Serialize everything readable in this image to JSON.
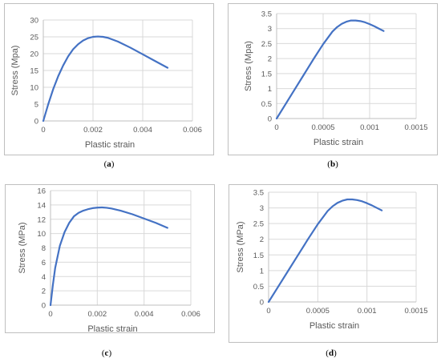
{
  "chart_data": [
    {
      "type": "line",
      "caption_open": "(",
      "caption_letter": "a",
      "caption_close": ")",
      "xlabel": "Plastic strain",
      "ylabel": "Stress (Mpa)",
      "xlim": [
        0,
        0.006
      ],
      "ylim": [
        0,
        30
      ],
      "xticks": [
        "0",
        "0.002",
        "0.004",
        "0.006"
      ],
      "xtick_values": [
        0,
        0.002,
        0.004,
        0.006
      ],
      "yticks": [
        "0",
        "5",
        "10",
        "15",
        "20",
        "25",
        "30"
      ],
      "ytick_values": [
        0,
        5,
        10,
        15,
        20,
        25,
        30
      ],
      "grid": true,
      "color": "#4472c4",
      "series": [
        {
          "x": [
            0,
            0.0002,
            0.0004,
            0.0006,
            0.0008,
            0.001,
            0.0012,
            0.0014,
            0.0016,
            0.0018,
            0.002,
            0.0022,
            0.0024,
            0.0026,
            0.003,
            0.0035,
            0.004,
            0.0045,
            0.005
          ],
          "y": [
            0,
            5.0,
            9.5,
            13.3,
            16.5,
            19.2,
            21.3,
            22.8,
            23.9,
            24.6,
            25.0,
            25.1,
            25.0,
            24.7,
            23.6,
            21.8,
            19.8,
            17.8,
            15.8
          ]
        }
      ]
    },
    {
      "type": "line",
      "caption_open": "(",
      "caption_letter": "b",
      "caption_close": ")",
      "xlabel": "Plastic strain",
      "ylabel": "Stress (Mpa)",
      "xlim": [
        0,
        0.0015
      ],
      "ylim": [
        0,
        3.5
      ],
      "xticks": [
        "0",
        "0.0005",
        "0.001",
        "0.0015"
      ],
      "xtick_values": [
        0,
        0.0005,
        0.001,
        0.0015
      ],
      "yticks": [
        "0",
        "0.5",
        "1",
        "1.5",
        "2",
        "2.5",
        "3",
        "3.5"
      ],
      "ytick_values": [
        0,
        0.5,
        1,
        1.5,
        2,
        2.5,
        3,
        3.5
      ],
      "grid": true,
      "color": "#4472c4",
      "series": [
        {
          "x": [
            0,
            0.0001,
            0.0002,
            0.0003,
            0.0004,
            0.0005,
            0.0006,
            0.00065,
            0.0007,
            0.00075,
            0.0008,
            0.00085,
            0.0009,
            0.00095,
            0.001,
            0.00105,
            0.0011,
            0.00115
          ],
          "y": [
            0,
            0.5,
            1.0,
            1.5,
            2.0,
            2.48,
            2.9,
            3.05,
            3.16,
            3.23,
            3.27,
            3.27,
            3.25,
            3.21,
            3.15,
            3.08,
            3.0,
            2.92
          ]
        }
      ]
    },
    {
      "type": "line",
      "caption_open": "(",
      "caption_letter": "c",
      "caption_close": ")",
      "xlabel": "Plastic strain",
      "ylabel": "Stress (MPa)",
      "xlim": [
        0,
        0.006
      ],
      "ylim": [
        0,
        16
      ],
      "xticks": [
        "0",
        "0.002",
        "0.004",
        "0.006"
      ],
      "xtick_values": [
        0,
        0.002,
        0.004,
        0.006
      ],
      "yticks": [
        "0",
        "2",
        "4",
        "6",
        "8",
        "10",
        "12",
        "14",
        "16"
      ],
      "ytick_values": [
        0,
        2,
        4,
        6,
        8,
        10,
        12,
        14,
        16
      ],
      "grid": true,
      "color": "#4472c4",
      "series": [
        {
          "x": [
            0,
            0.0001,
            0.0002,
            0.0004,
            0.0006,
            0.0008,
            0.001,
            0.0012,
            0.0014,
            0.0016,
            0.0018,
            0.002,
            0.0022,
            0.0024,
            0.0026,
            0.003,
            0.0035,
            0.004,
            0.0045,
            0.005
          ],
          "y": [
            0,
            2.8,
            5.2,
            8.3,
            10.2,
            11.5,
            12.4,
            12.9,
            13.2,
            13.4,
            13.55,
            13.62,
            13.65,
            13.6,
            13.5,
            13.2,
            12.7,
            12.1,
            11.5,
            10.8
          ]
        }
      ]
    },
    {
      "type": "line",
      "caption_open": "(",
      "caption_letter": "d",
      "caption_close": ")",
      "xlabel": "Plastic strain",
      "ylabel": "Stress (MPa)",
      "xlim": [
        0,
        0.0015
      ],
      "ylim": [
        0,
        3.5
      ],
      "xticks": [
        "0",
        "0.0005",
        "0.001",
        "0.0015"
      ],
      "xtick_values": [
        0,
        0.0005,
        0.001,
        0.0015
      ],
      "yticks": [
        "0",
        "0.5",
        "1",
        "1.5",
        "2",
        "2.5",
        "3",
        "3.5"
      ],
      "ytick_values": [
        0,
        0.5,
        1,
        1.5,
        2,
        2.5,
        3,
        3.5
      ],
      "grid": true,
      "color": "#4472c4",
      "series": [
        {
          "x": [
            0,
            0.0001,
            0.0002,
            0.0003,
            0.0004,
            0.0005,
            0.0006,
            0.00065,
            0.0007,
            0.00075,
            0.0008,
            0.00085,
            0.0009,
            0.00095,
            0.001,
            0.00105,
            0.0011,
            0.00115
          ],
          "y": [
            0,
            0.5,
            1.0,
            1.5,
            2.0,
            2.48,
            2.9,
            3.05,
            3.16,
            3.23,
            3.27,
            3.27,
            3.25,
            3.21,
            3.15,
            3.08,
            3.0,
            2.92
          ]
        }
      ]
    }
  ]
}
